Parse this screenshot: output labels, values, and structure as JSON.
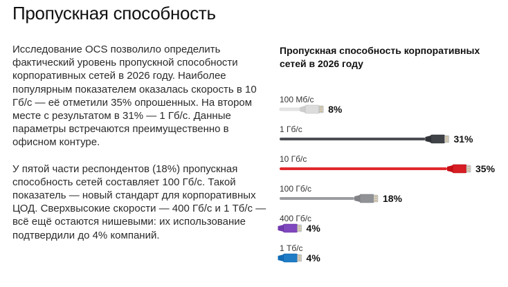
{
  "page": {
    "title": "Пропускная способность",
    "paragraphs": [
      "Исследование OCS позволило определить фактический уровень пропускной способности корпоративных сетей в 2026 году. Наиболее популярным показателем оказалась скорость в 10 Гб/с — её отметили 35% опрошенных. На втором месте с результатом в 31% — 1 Гб/с. Данные параметры встречаются преимущественно в офисном контуре.",
      "У пятой части респондентов (18%) пропускная способность сетей составляет 100 Гб/с. Такой показатель — новый стандарт для корпоративных ЦОД. Сверхвысокие скорости — 400 Гб/с и 1 Тб/с — всё ещё остаются нишевыми: их использование подтвердили до 4% компаний."
    ]
  },
  "chart_data": {
    "type": "bar",
    "orientation": "horizontal",
    "title": "Пропускная способность корпоративных сетей в 2026 году",
    "categories": [
      "100 Мб/с",
      "1 Гб/с",
      "10 Гб/с",
      "100 Гб/с",
      "400 Гб/с",
      "1 Тб/с"
    ],
    "values": [
      8,
      31,
      35,
      18,
      4,
      4
    ],
    "value_labels": [
      "8%",
      "31%",
      "35%",
      "18%",
      "4%",
      "4%"
    ],
    "colors": [
      "#e6e6e6",
      "#4a4d52",
      "#e0282e",
      "#9a9ca0",
      "#8a52c7",
      "#2a86cf"
    ],
    "xlim": [
      0,
      35
    ],
    "grid": false,
    "legend": "none",
    "style": "ethernet-cable"
  }
}
